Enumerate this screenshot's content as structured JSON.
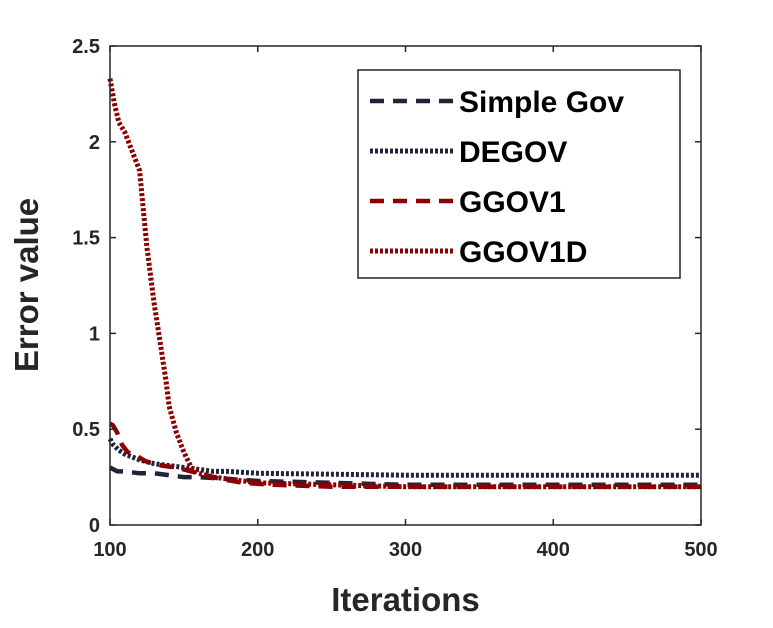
{
  "chart_data": {
    "type": "line",
    "title": "",
    "xlabel": "Iterations",
    "ylabel": "Error value",
    "xlim": [
      100,
      500
    ],
    "ylim": [
      0,
      2.5
    ],
    "x_ticks": [
      100,
      200,
      300,
      400,
      500
    ],
    "y_ticks": [
      0,
      0.5,
      1,
      1.5,
      2,
      2.5
    ],
    "x_tick_labels": [
      "100",
      "200",
      "300",
      "400",
      "500"
    ],
    "y_tick_labels": [
      "0",
      "0.5",
      "1",
      "1.5",
      "2",
      "2.5"
    ],
    "grid": false,
    "legend_position": "top-right",
    "series": [
      {
        "name": "Simple Gov",
        "color": "#1f2538",
        "style": "dashed",
        "x": [
          100,
          105,
          110,
          120,
          130,
          140,
          150,
          160,
          180,
          200,
          250,
          300,
          400,
          500
        ],
        "y": [
          0.3,
          0.28,
          0.28,
          0.27,
          0.27,
          0.26,
          0.25,
          0.25,
          0.24,
          0.23,
          0.22,
          0.21,
          0.21,
          0.21
        ]
      },
      {
        "name": "DEGOV",
        "color": "#1f2538",
        "style": "dotted",
        "x": [
          100,
          102,
          106,
          110,
          120,
          130,
          140,
          150,
          160,
          170,
          180,
          200,
          250,
          300,
          400,
          500
        ],
        "y": [
          0.45,
          0.42,
          0.39,
          0.37,
          0.34,
          0.32,
          0.31,
          0.3,
          0.29,
          0.28,
          0.28,
          0.27,
          0.265,
          0.26,
          0.26,
          0.26
        ]
      },
      {
        "name": "GGOV1",
        "color": "#8b0000",
        "style": "dashed",
        "x": [
          100,
          102,
          105,
          108,
          112,
          118,
          125,
          135,
          145,
          155,
          165,
          175,
          190,
          210,
          250,
          300,
          400,
          500
        ],
        "y": [
          0.53,
          0.52,
          0.48,
          0.42,
          0.38,
          0.36,
          0.33,
          0.31,
          0.3,
          0.28,
          0.26,
          0.24,
          0.22,
          0.21,
          0.2,
          0.2,
          0.2,
          0.2
        ]
      },
      {
        "name": "GGOV1D",
        "color": "#8b0000",
        "style": "dotted",
        "x": [
          100,
          103,
          106,
          110,
          115,
          120,
          125,
          130,
          132,
          135,
          138,
          140,
          145,
          150,
          155,
          160,
          170,
          180,
          200,
          250,
          300,
          400,
          500
        ],
        "y": [
          2.33,
          2.2,
          2.1,
          2.05,
          1.95,
          1.85,
          1.45,
          1.15,
          1.05,
          0.9,
          0.75,
          0.62,
          0.48,
          0.38,
          0.3,
          0.27,
          0.25,
          0.24,
          0.22,
          0.21,
          0.2,
          0.2,
          0.2
        ]
      }
    ]
  }
}
